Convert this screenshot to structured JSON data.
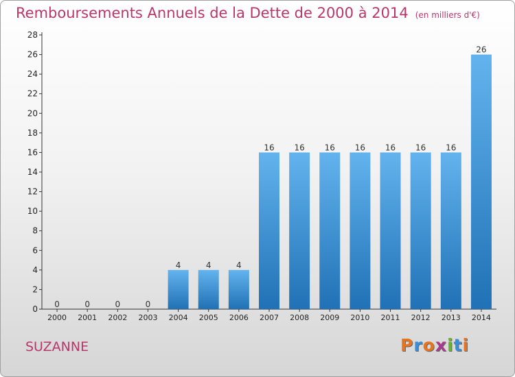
{
  "title": "Remboursements Annuels de la Dette de 2000 à 2014",
  "unit": "(en milliers d'€)",
  "commune": "SUZANNE",
  "logo": {
    "text": "Proxiti",
    "colors": [
      "#e8731f",
      "#3b8ed6",
      "#e8731f",
      "#a83a8c",
      "#6ab42d",
      "#3b8ed6",
      "#e8731f"
    ]
  },
  "colors": {
    "bar_top": "#63b3ee",
    "bar_bottom": "#2071b5",
    "title": "#b8366a",
    "axis": "#333333"
  },
  "chart_data": {
    "type": "bar",
    "categories": [
      "2000",
      "2001",
      "2002",
      "2003",
      "2004",
      "2005",
      "2006",
      "2007",
      "2008",
      "2009",
      "2010",
      "2011",
      "2012",
      "2013",
      "2014"
    ],
    "values": [
      0,
      0,
      0,
      0,
      4,
      4,
      4,
      16,
      16,
      16,
      16,
      16,
      16,
      16,
      26
    ],
    "ylim": [
      0,
      28
    ],
    "yticks": [
      0,
      2,
      4,
      6,
      8,
      10,
      12,
      14,
      16,
      18,
      20,
      22,
      24,
      26,
      28
    ],
    "grid": false,
    "data_labels": true
  }
}
